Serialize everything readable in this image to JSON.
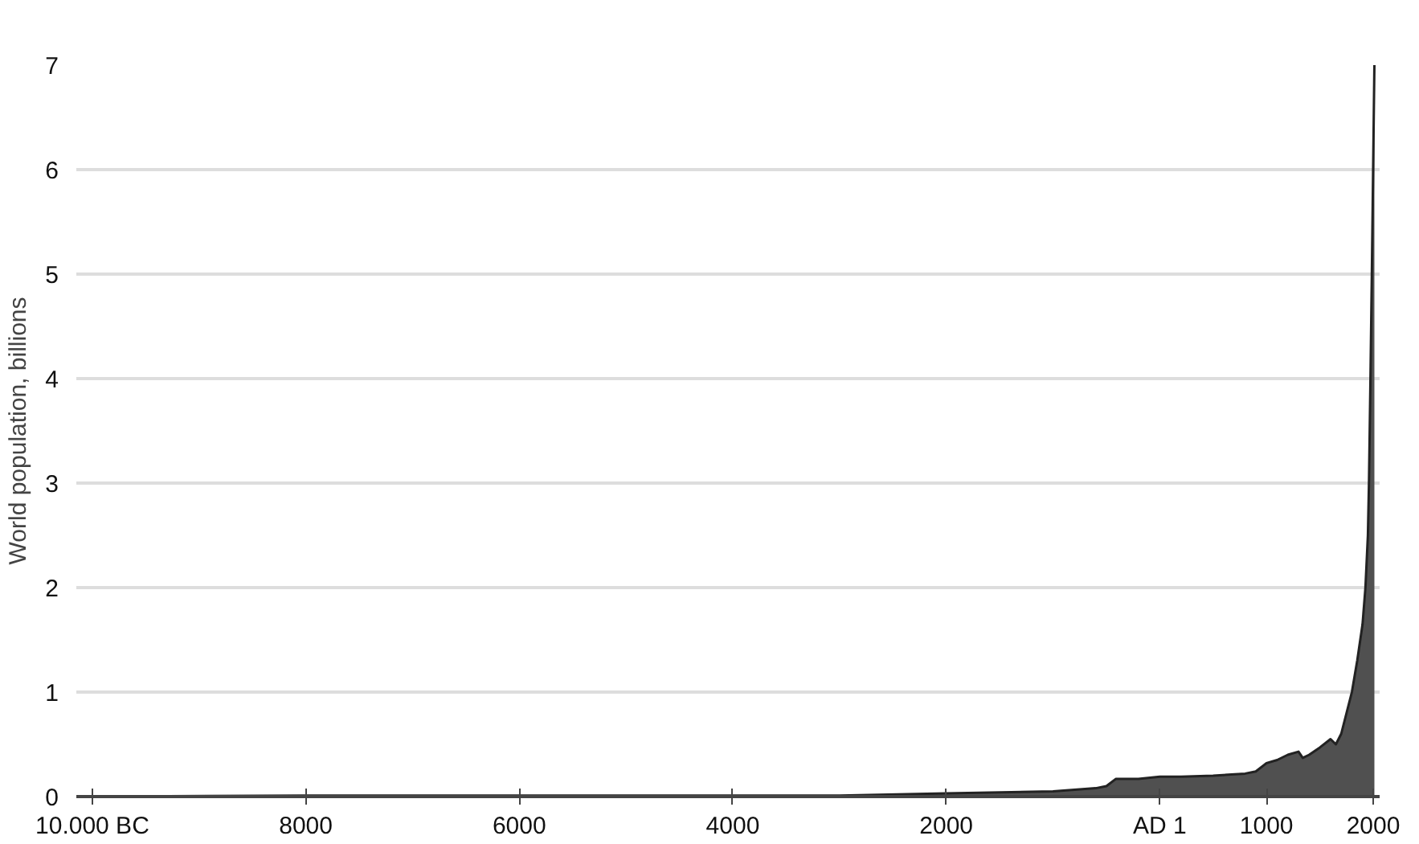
{
  "chart_data": {
    "type": "area",
    "ylabel": "World population, billions",
    "x": [
      -10000,
      -8000,
      -6000,
      -5000,
      -4000,
      -3000,
      -2000,
      -1000,
      -600,
      -500,
      -410,
      -200,
      1,
      200,
      500,
      800,
      900,
      1000,
      1100,
      1200,
      1300,
      1340,
      1400,
      1500,
      1600,
      1650,
      1700,
      1750,
      1800,
      1850,
      1900,
      1927,
      1950,
      1960,
      1974,
      1987,
      1999,
      2011
    ],
    "series": [
      {
        "color": "#505050",
        "values": [
          0.0,
          0.01,
          0.01,
          0.01,
          0.01,
          0.01,
          0.03,
          0.05,
          0.08,
          0.1,
          0.17,
          0.17,
          0.19,
          0.19,
          0.2,
          0.22,
          0.24,
          0.32,
          0.35,
          0.4,
          0.43,
          0.37,
          0.4,
          0.47,
          0.55,
          0.5,
          0.6,
          0.8,
          1.0,
          1.3,
          1.65,
          2.0,
          2.5,
          3.0,
          4.0,
          5.0,
          6.0,
          7.0
        ]
      }
    ],
    "xlim": [
      -10150,
      2060
    ],
    "ylim": [
      0,
      7
    ],
    "xticks": [
      {
        "value": -10000,
        "label": "10.000 BC"
      },
      {
        "value": -8000,
        "label": "8000"
      },
      {
        "value": -6000,
        "label": "6000"
      },
      {
        "value": -4000,
        "label": "4000"
      },
      {
        "value": -2000,
        "label": "2000"
      },
      {
        "value": 0,
        "label": "AD 1"
      },
      1000,
      2000
    ],
    "yticks": [
      0,
      1,
      2,
      3,
      4,
      5,
      6,
      7
    ],
    "grid": "y"
  }
}
